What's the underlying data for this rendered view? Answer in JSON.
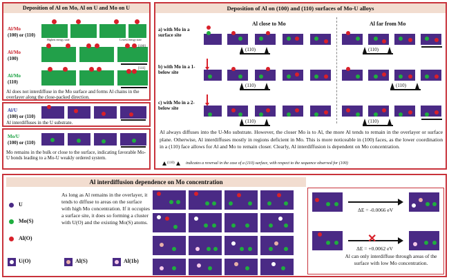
{
  "left_top": {
    "title": "Deposition of Al on Mo, Al on U and Mo on U",
    "row1_label_a": "Al/Mo",
    "row1_label_b": "(100) or (110)",
    "row2_label_a": "Al/Mo",
    "row2_label_b": "(100)",
    "row3_label_a": "Al/Mo",
    "row3_label_b": "(110)",
    "highest_energy": "Highest energy state",
    "lowest_energy": "Lowest energy state",
    "dir_100": "[100]",
    "dir_111": "[111]",
    "caption": "Al does not interdiffuse in the Mo surface and forms Al chains in the overlayer along the close-packed direction."
  },
  "left_mid": {
    "label_a": "Al/U",
    "label_b": "(100) or (110)",
    "caption": "Al interdiffuses in the U substrate."
  },
  "left_bot": {
    "label_a": "Mo/U",
    "label_b": "(100) or (110)",
    "caption": "Mo remains in the bulk or close to the surface, indicating favorable Mo-U bonds leading to a Mo-U weakly ordered system."
  },
  "right_top": {
    "title": "Deposition of Al on (100) and (110) surfaces of Mo-U alloys",
    "col_close": "Al close to Mo",
    "col_far": "Al far from Mo",
    "row_a": "a) with Mo in a surface site",
    "row_b": "b) with Mo in a 1-below site",
    "row_c": "c) with Mo in a 2-below site",
    "tag_110": "(110)",
    "paragraph": "Al always diffuses into the U-Mo substrate. However, the closer Mo is to Al, the more Al tends to remain in the overlayer or surface plane. Otherwise, Al interdiffuses mostly in regions deficient in Mo. This is more noticeable in (100) faces, as the lower coordination in a (110) face allows for Al and Mo to remain closer.  Clearly, Al interdiffusion is dependent on Mo concentration.",
    "legend_tag": "(110)",
    "legend_text": "indicates a reversal in the case of a (110) surface, with respect to the sequence observed for (100)"
  },
  "bottom": {
    "title": "Al interdiffusion dependence on Mo concentration",
    "legend": {
      "u": "U",
      "mo": "Mo(S)",
      "al": "Al(O)",
      "uo": "U(O)",
      "als": "Al(S)",
      "al1b": "Al(1b)"
    },
    "text": "As long as Al remains in the overlayer, it tends to diffuse to areas on the surface with high Mo concentration. If it occupies a surface site, it does so forming a cluster with U(O) and the existing Mo(S) atoms.",
    "energy1": "ΔE = -0.0066 eV",
    "energy2": "ΔE = +0.0062 eV",
    "caption": "Al can only interdiffuse through areas of the surface with low Mo concentration."
  },
  "colors": {
    "frame": "#c8323a",
    "title_bg": "#f2ddd0",
    "substrate": "#4a2a85",
    "mo_substrate": "#22a04a",
    "al": "#d8202a",
    "mo": "#1fae3f"
  }
}
